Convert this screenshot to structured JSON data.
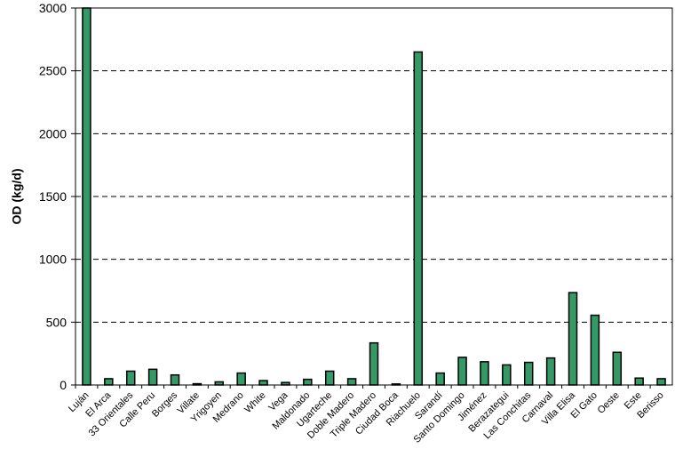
{
  "chart_data": {
    "type": "bar",
    "y_label": "OD (kg/d)",
    "categories": [
      "Luján",
      "El Arca",
      "33 Orientales",
      "Calle Peru",
      "Borges",
      "Villate",
      "Yrigoyen",
      "Medrano",
      "White",
      "Vega",
      "Maldonado",
      "Ugarteche",
      "Doble Madero",
      "Triple Madero",
      "Ciudad Boca",
      "Riachuelo",
      "Sarandí",
      "Santo Domingo",
      "Jiménez",
      "Berazategui",
      "Las Conchitas",
      "Carnaval",
      "Villa Elisa",
      "El Gato",
      "Oeste",
      "Este",
      "Berisso"
    ],
    "values": [
      3000,
      50,
      110,
      125,
      80,
      10,
      25,
      95,
      35,
      20,
      45,
      110,
      50,
      335,
      8,
      2650,
      95,
      220,
      185,
      160,
      180,
      215,
      735,
      555,
      260,
      55,
      50
    ],
    "color": "#339966",
    "ylim": [
      0,
      3000
    ],
    "yticks": [
      0,
      500,
      1000,
      1500,
      2000,
      2500,
      3000
    ],
    "grid": true
  }
}
